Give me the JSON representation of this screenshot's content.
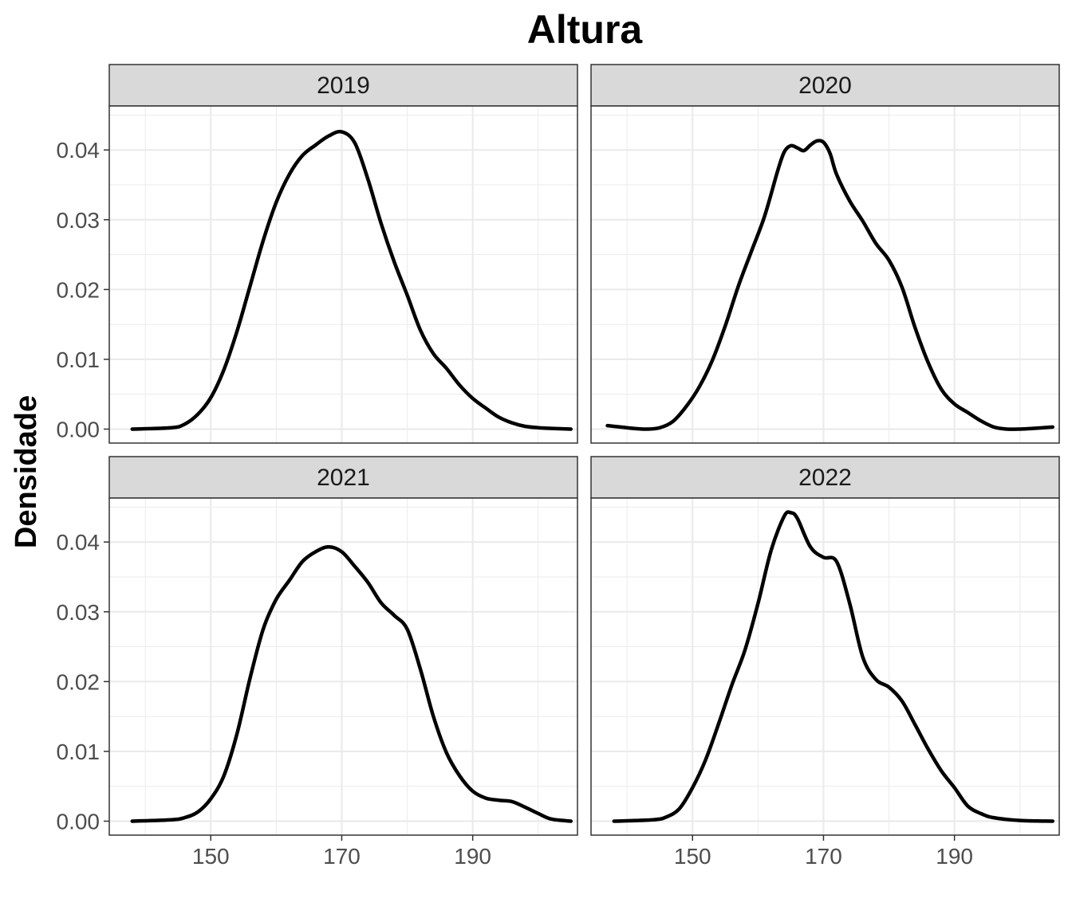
{
  "chart_data": {
    "type": "line",
    "title": "Altura",
    "xlabel": "",
    "ylabel": "Densidade",
    "xlim": [
      134.5,
      206
    ],
    "ylim": [
      -0.002,
      0.0463
    ],
    "x_ticks": [
      150,
      170,
      190
    ],
    "y_ticks": [
      0.0,
      0.01,
      0.02,
      0.03,
      0.04
    ],
    "y_tick_labels": [
      "0.00",
      "0.01",
      "0.02",
      "0.03",
      "0.04"
    ],
    "x_tick_labels": [
      "150",
      "170",
      "190"
    ],
    "grid": true,
    "colors": {
      "line": "#000000",
      "strip_fill": "#d9d9d9",
      "grid": "#ebebeb",
      "panel_border": "#333333"
    },
    "facets": [
      {
        "name": "2019",
        "x": [
          138,
          144,
          146,
          148,
          150,
          152,
          154,
          156,
          158,
          160,
          162,
          164,
          166,
          168,
          170,
          172,
          174,
          176,
          178,
          180,
          182,
          184,
          186,
          188,
          190,
          192,
          194,
          196,
          198,
          200,
          202,
          205
        ],
        "y": [
          0.0,
          0.0002,
          0.0007,
          0.0021,
          0.0045,
          0.0085,
          0.014,
          0.0205,
          0.027,
          0.0325,
          0.0365,
          0.0392,
          0.0407,
          0.042,
          0.0426,
          0.041,
          0.0358,
          0.0295,
          0.024,
          0.0192,
          0.0142,
          0.0108,
          0.0087,
          0.0063,
          0.0044,
          0.003,
          0.0017,
          0.0009,
          0.0004,
          0.0002,
          0.0001,
          0.0
        ]
      },
      {
        "name": "2020",
        "x": [
          137,
          139,
          141,
          143,
          145,
          147,
          149,
          151,
          153,
          155,
          157,
          159,
          161,
          163,
          164,
          165,
          166,
          167,
          168,
          169,
          170,
          171,
          172,
          174,
          176,
          178,
          180,
          182,
          184,
          186,
          188,
          190,
          192,
          194,
          196,
          198,
          200,
          202,
          205
        ],
        "y": [
          0.0005,
          0.0003,
          0.0001,
          0.0,
          0.0002,
          0.0011,
          0.0032,
          0.006,
          0.0098,
          0.0148,
          0.0205,
          0.0255,
          0.0305,
          0.037,
          0.0397,
          0.0406,
          0.0403,
          0.0399,
          0.0407,
          0.0413,
          0.0411,
          0.0395,
          0.0365,
          0.0327,
          0.0298,
          0.0266,
          0.0242,
          0.0203,
          0.0145,
          0.0095,
          0.0057,
          0.0036,
          0.0024,
          0.0012,
          0.0003,
          0.0,
          0.0,
          0.0001,
          0.0003
        ]
      },
      {
        "name": "2021",
        "x": [
          138,
          144,
          146,
          148,
          150,
          152,
          154,
          156,
          158,
          160,
          162,
          164,
          166,
          168,
          170,
          172,
          174,
          176,
          178,
          180,
          182,
          184,
          186,
          188,
          190,
          192,
          194,
          196,
          198,
          200,
          202,
          205
        ],
        "y": [
          0.0,
          0.0002,
          0.0005,
          0.0013,
          0.0032,
          0.0065,
          0.0125,
          0.0205,
          0.0275,
          0.0318,
          0.0345,
          0.0372,
          0.0386,
          0.0393,
          0.0386,
          0.0365,
          0.0342,
          0.0313,
          0.0295,
          0.0275,
          0.0218,
          0.015,
          0.0098,
          0.0065,
          0.0043,
          0.0033,
          0.003,
          0.0028,
          0.002,
          0.0011,
          0.0003,
          0.0
        ]
      },
      {
        "name": "2022",
        "x": [
          138,
          144,
          146,
          148,
          150,
          152,
          154,
          156,
          158,
          160,
          162,
          164,
          165,
          166,
          168,
          170,
          172,
          174,
          176,
          178,
          180,
          182,
          184,
          186,
          188,
          190,
          192,
          194,
          196,
          200,
          205
        ],
        "y": [
          0.0,
          0.0002,
          0.0006,
          0.0018,
          0.0048,
          0.0088,
          0.014,
          0.0195,
          0.0245,
          0.0312,
          0.0388,
          0.0437,
          0.0442,
          0.0434,
          0.0393,
          0.0378,
          0.0372,
          0.0312,
          0.0235,
          0.0203,
          0.0192,
          0.0172,
          0.0138,
          0.0103,
          0.0072,
          0.0048,
          0.0022,
          0.0011,
          0.0005,
          0.0001,
          0.0
        ]
      }
    ]
  }
}
